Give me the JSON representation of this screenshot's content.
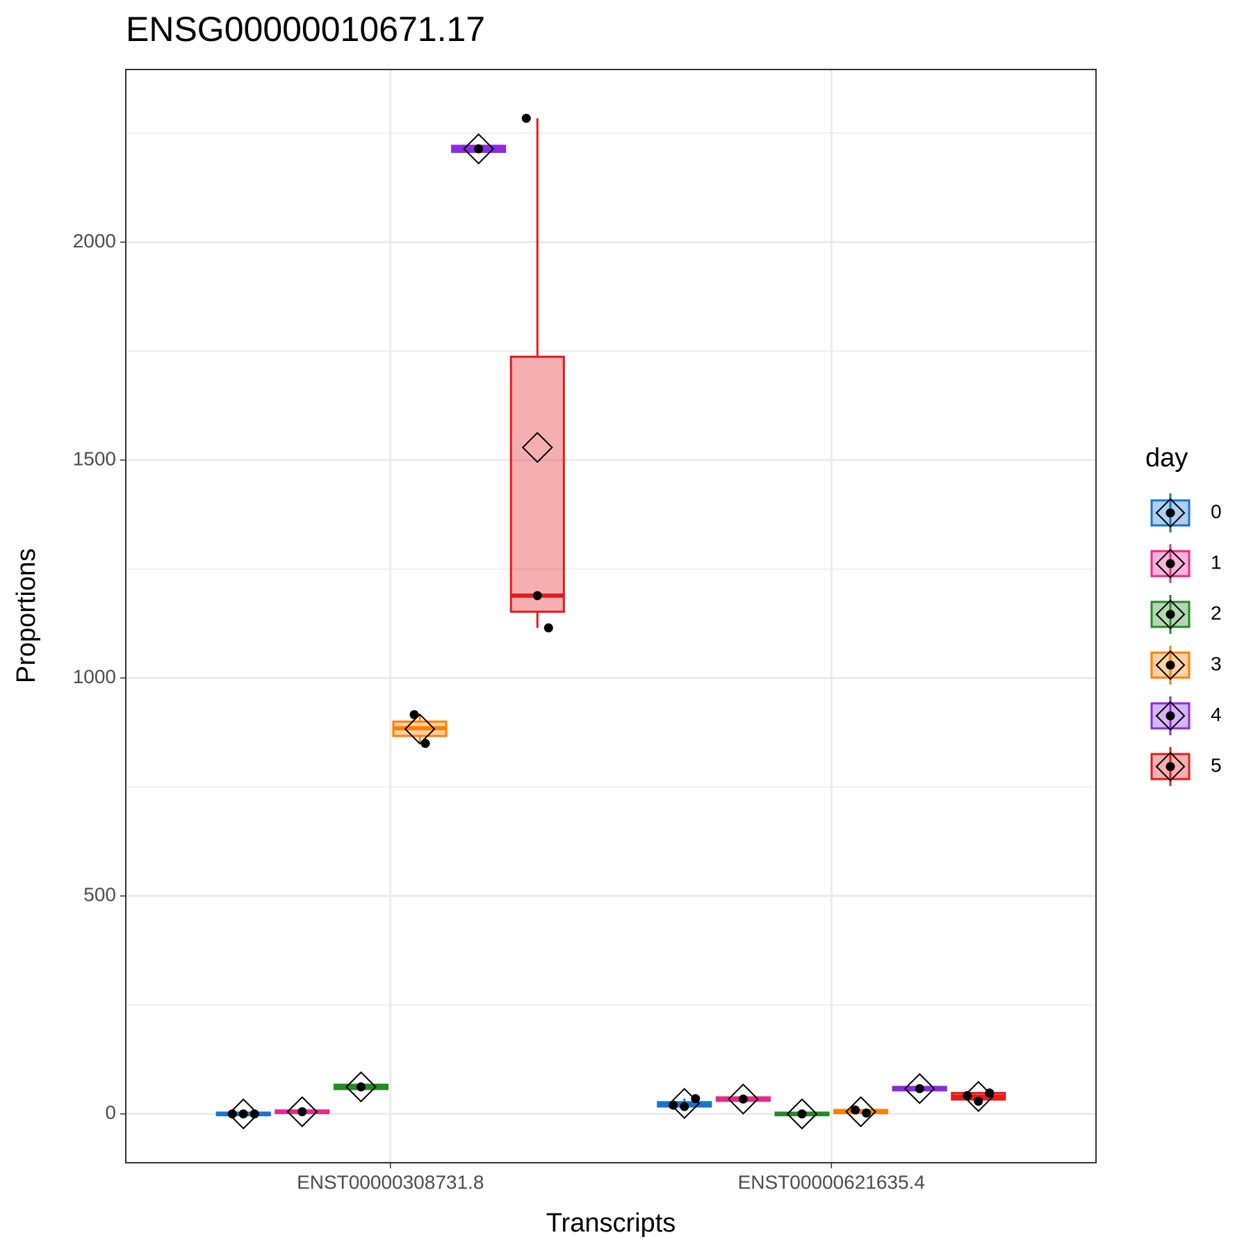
{
  "chart_data": {
    "type": "box",
    "title": "ENSG00000010671.17",
    "x_label": "Transcripts",
    "y_label": "Proportions",
    "categories": [
      "ENST00000308731.8",
      "ENST00000621635.4"
    ],
    "ylim": [
      -112,
      2396
    ],
    "yticks": [
      0,
      500,
      1000,
      1500,
      2000
    ],
    "grid": true,
    "legend_title": "day",
    "legend_position": "right",
    "series": [
      {
        "name": "0",
        "color": "#1874CD",
        "q1": [
          -3,
          17
        ],
        "median": [
          0,
          22
        ],
        "q3": [
          3,
          27
        ],
        "whislo": [
          0,
          17
        ],
        "whishi": [
          0,
          35
        ],
        "mean": [
          0,
          24
        ],
        "points": [
          [
            0,
            0,
            0
          ],
          [
            20,
            17,
            35
          ]
        ]
      },
      {
        "name": "1",
        "color": "#E7298A",
        "q1": [
          2,
          30
        ],
        "median": [
          5,
          34
        ],
        "q3": [
          8,
          38
        ],
        "whislo": [
          5,
          34
        ],
        "whishi": [
          5,
          34
        ],
        "mean": [
          5,
          34
        ],
        "points": [
          [
            5
          ],
          [
            34
          ]
        ]
      },
      {
        "name": "2",
        "color": "#228B22",
        "q1": [
          57,
          -3
        ],
        "median": [
          62,
          0
        ],
        "q3": [
          67,
          3
        ],
        "whislo": [
          62,
          0
        ],
        "whishi": [
          62,
          0
        ],
        "mean": [
          62,
          0
        ],
        "points": [
          [
            62
          ],
          [
            0
          ]
        ]
      },
      {
        "name": "3",
        "color": "#FF7F00",
        "q1": [
          867,
          2
        ],
        "median": [
          885,
          5
        ],
        "q3": [
          900,
          9
        ],
        "whislo": [
          850,
          2
        ],
        "whishi": [
          916,
          9
        ],
        "mean": [
          883,
          5
        ],
        "points": [
          [
            916,
            850
          ],
          [
            9,
            2
          ]
        ]
      },
      {
        "name": "4",
        "color": "#8A2BE2",
        "q1": [
          2207,
          54
        ],
        "median": [
          2214,
          58
        ],
        "q3": [
          2221,
          62
        ],
        "whislo": [
          2214,
          58
        ],
        "whishi": [
          2214,
          58
        ],
        "mean": [
          2214,
          58
        ],
        "points": [
          [
            2214
          ],
          [
            58
          ]
        ]
      },
      {
        "name": "5",
        "color": "#E41A1C",
        "q1": [
          1152,
          33
        ],
        "median": [
          1189,
          40
        ],
        "q3": [
          1737,
          48
        ],
        "whislo": [
          1115,
          29
        ],
        "whishi": [
          2284,
          48
        ],
        "mean": [
          1529,
          40
        ],
        "points": [
          [
            2284,
            1189,
            1115
          ],
          [
            42,
            29,
            48
          ]
        ]
      }
    ]
  }
}
